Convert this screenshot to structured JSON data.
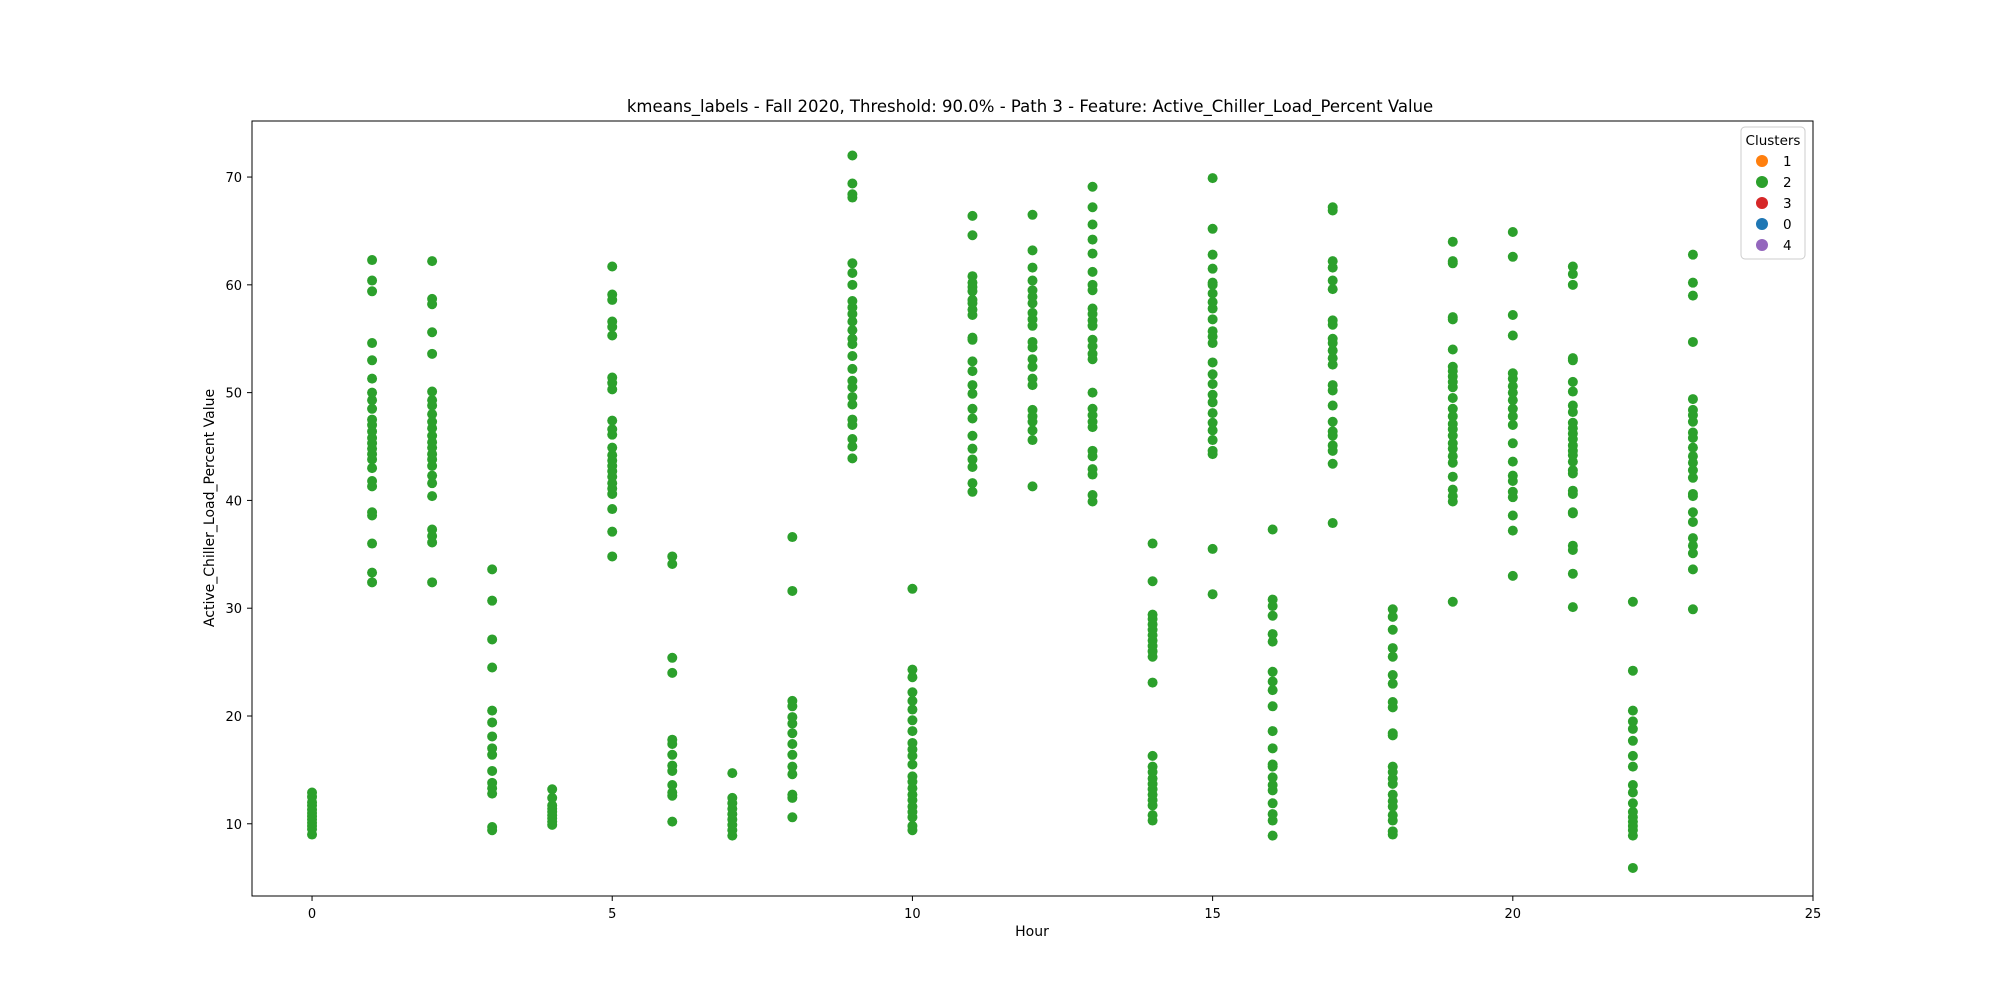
{
  "chart_data": {
    "type": "scatter",
    "title": "kmeans_labels - Fall 2020, Threshold: 90.0% - Path 3 - Feature: Active_Chiller_Load_Percent Value",
    "xlabel": "Hour",
    "ylabel": "Active_Chiller_Load_Percent Value",
    "xlim": [
      -1,
      25
    ],
    "ylim": [
      3.3,
      75.2
    ],
    "xticks": [
      0,
      5,
      10,
      15,
      20,
      25
    ],
    "yticks": [
      10,
      20,
      30,
      40,
      50,
      60,
      70
    ],
    "grid": false,
    "legend": {
      "title": "Clusters",
      "placement": "top-right",
      "entries": [
        {
          "label": "1",
          "color": "#ff7f0e"
        },
        {
          "label": "2",
          "color": "#2ca02c"
        },
        {
          "label": "3",
          "color": "#d62728"
        },
        {
          "label": "0",
          "color": "#1f77b4"
        },
        {
          "label": "4",
          "color": "#9467bd"
        }
      ]
    },
    "series": [
      {
        "name": "2",
        "color": "#2ca02c",
        "points_by_hour": [
          {
            "x": 0,
            "y": [
              9.0,
              9.5,
              9.8,
              10.1,
              10.4,
              10.7,
              11.0,
              11.3,
              11.7,
              12.0,
              12.5,
              12.9
            ]
          },
          {
            "x": 1,
            "y": [
              32.4,
              33.3,
              36.0,
              38.6,
              38.9,
              41.3,
              41.8,
              43.0,
              43.8,
              44.3,
              44.8,
              45.3,
              45.8,
              46.4,
              47.0,
              47.5,
              48.5,
              49.3,
              50.0,
              51.3,
              53.0,
              54.6,
              59.4,
              60.4,
              62.3
            ]
          },
          {
            "x": 2,
            "y": [
              32.4,
              36.1,
              36.7,
              37.3,
              40.4,
              41.6,
              42.3,
              43.2,
              43.8,
              44.3,
              44.9,
              45.4,
              46.0,
              46.7,
              47.3,
              48.0,
              48.8,
              49.3,
              50.1,
              53.6,
              55.6,
              58.2,
              58.7,
              62.2
            ]
          },
          {
            "x": 3,
            "y": [
              9.4,
              9.7,
              12.8,
              13.3,
              13.8,
              14.9,
              16.4,
              17.0,
              18.1,
              19.4,
              20.5,
              24.5,
              27.1,
              30.7,
              33.6
            ]
          },
          {
            "x": 4,
            "y": [
              9.9,
              10.2,
              10.5,
              10.8,
              11.1,
              11.4,
              11.7,
              12.4,
              13.2
            ]
          },
          {
            "x": 5,
            "y": [
              34.8,
              37.1,
              39.2,
              40.6,
              41.1,
              41.6,
              42.2,
              42.7,
              43.2,
              43.7,
              44.2,
              44.9,
              46.1,
              46.6,
              47.4,
              50.3,
              50.9,
              51.4,
              55.3,
              56.1,
              56.6,
              58.6,
              59.1,
              61.7
            ]
          },
          {
            "x": 6,
            "y": [
              10.2,
              12.6,
              12.9,
              13.6,
              14.9,
              15.4,
              16.4,
              17.4,
              17.8,
              24.0,
              25.4,
              34.1,
              34.8
            ]
          },
          {
            "x": 7,
            "y": [
              8.9,
              9.4,
              9.9,
              10.4,
              10.9,
              11.4,
              11.9,
              12.4,
              14.7
            ]
          },
          {
            "x": 8,
            "y": [
              10.6,
              12.4,
              12.7,
              14.6,
              15.3,
              16.4,
              17.4,
              18.4,
              19.3,
              19.9,
              20.9,
              21.4,
              31.6,
              36.6
            ]
          },
          {
            "x": 9,
            "y": [
              43.9,
              45.0,
              45.7,
              47.0,
              47.5,
              48.9,
              49.6,
              50.5,
              51.1,
              52.2,
              53.4,
              54.5,
              55.0,
              55.8,
              56.6,
              57.3,
              57.9,
              58.5,
              60.0,
              61.1,
              62.0,
              68.1,
              68.4,
              69.4,
              72.0
            ]
          },
          {
            "x": 10,
            "y": [
              9.4,
              9.8,
              10.6,
              11.1,
              11.6,
              12.2,
              12.7,
              13.3,
              13.9,
              14.4,
              15.5,
              16.3,
              16.9,
              17.5,
              18.6,
              19.6,
              20.6,
              21.4,
              22.2,
              23.6,
              24.3,
              31.8
            ]
          },
          {
            "x": 11,
            "y": [
              40.8,
              41.6,
              43.1,
              43.8,
              44.8,
              46.0,
              47.6,
              48.5,
              49.9,
              50.7,
              52.0,
              52.9,
              54.9,
              55.1,
              57.2,
              57.7,
              58.3,
              58.6,
              59.4,
              59.8,
              60.2,
              60.8,
              64.6,
              66.4
            ]
          },
          {
            "x": 12,
            "y": [
              41.3,
              45.6,
              46.5,
              47.3,
              47.8,
              48.4,
              50.7,
              51.3,
              52.4,
              53.1,
              54.2,
              54.7,
              56.2,
              56.8,
              57.4,
              58.3,
              58.9,
              59.5,
              60.4,
              61.6,
              63.2,
              66.5
            ]
          },
          {
            "x": 13,
            "y": [
              39.9,
              40.5,
              42.4,
              42.9,
              44.1,
              44.6,
              46.8,
              47.3,
              47.9,
              48.5,
              50.0,
              53.1,
              53.6,
              54.3,
              54.9,
              56.2,
              56.7,
              57.3,
              57.8,
              59.5,
              60.0,
              61.2,
              62.9,
              64.2,
              65.6,
              67.2,
              69.1
            ]
          },
          {
            "x": 14,
            "y": [
              10.3,
              10.8,
              11.7,
              12.2,
              12.7,
              13.2,
              13.7,
              14.2,
              14.8,
              15.3,
              16.3,
              23.1,
              25.5,
              26.0,
              26.5,
              27.0,
              27.5,
              28.0,
              28.5,
              29.0,
              29.4,
              32.5,
              36.0
            ]
          },
          {
            "x": 15,
            "y": [
              31.3,
              35.5,
              44.3,
              44.6,
              45.6,
              46.5,
              47.2,
              48.1,
              49.1,
              49.8,
              50.8,
              51.7,
              52.8,
              54.6,
              55.2,
              55.7,
              56.8,
              57.8,
              58.4,
              59.2,
              60.0,
              60.2,
              61.5,
              62.8,
              65.2,
              69.9
            ]
          },
          {
            "x": 16,
            "y": [
              8.9,
              10.3,
              10.9,
              11.9,
              13.1,
              13.6,
              14.3,
              15.3,
              15.5,
              17.0,
              18.6,
              20.9,
              22.4,
              23.2,
              24.1,
              26.9,
              27.6,
              29.3,
              30.2,
              30.8,
              37.3
            ]
          },
          {
            "x": 17,
            "y": [
              37.9,
              43.4,
              44.6,
              45.1,
              46.0,
              46.4,
              47.3,
              48.8,
              50.2,
              50.7,
              52.6,
              53.2,
              53.9,
              54.6,
              55.0,
              56.3,
              56.7,
              59.6,
              60.4,
              61.6,
              62.2,
              66.9,
              67.2
            ]
          },
          {
            "x": 18,
            "y": [
              9.0,
              9.3,
              10.3,
              10.8,
              11.6,
              12.1,
              12.7,
              13.7,
              14.2,
              14.8,
              15.3,
              18.2,
              18.4,
              20.8,
              21.3,
              23.0,
              23.8,
              25.5,
              26.3,
              28.0,
              29.2,
              29.9
            ]
          },
          {
            "x": 19,
            "y": [
              30.6,
              39.9,
              40.4,
              41.0,
              42.2,
              43.5,
              44.1,
              44.8,
              45.3,
              46.0,
              46.6,
              47.1,
              47.8,
              48.5,
              49.5,
              50.5,
              51.0,
              51.5,
              52.0,
              52.4,
              54.0,
              56.8,
              57.0,
              62.0,
              62.2,
              64.0
            ]
          },
          {
            "x": 20,
            "y": [
              33.0,
              37.2,
              38.6,
              40.3,
              40.8,
              41.8,
              42.3,
              43.6,
              45.3,
              47.0,
              47.8,
              48.5,
              49.3,
              50.0,
              50.6,
              51.3,
              51.8,
              55.3,
              57.2,
              62.6,
              64.9
            ]
          },
          {
            "x": 21,
            "y": [
              30.1,
              33.2,
              35.4,
              35.8,
              38.8,
              38.9,
              40.6,
              40.9,
              42.5,
              42.8,
              43.6,
              44.2,
              44.6,
              45.1,
              45.7,
              46.2,
              46.7,
              47.2,
              48.2,
              48.8,
              50.1,
              51.0,
              53.0,
              53.2,
              60.0,
              61.0,
              61.7
            ]
          },
          {
            "x": 22,
            "y": [
              5.9,
              8.9,
              9.4,
              9.8,
              10.2,
              10.6,
              11.1,
              11.9,
              12.9,
              13.6,
              15.3,
              16.3,
              17.7,
              18.8,
              19.5,
              20.5,
              24.2,
              30.6
            ]
          },
          {
            "x": 23,
            "y": [
              29.9,
              33.6,
              35.1,
              35.8,
              36.5,
              38.0,
              38.9,
              40.4,
              40.6,
              42.1,
              42.8,
              43.5,
              44.1,
              44.9,
              45.8,
              46.3,
              47.3,
              47.9,
              48.4,
              49.4,
              54.7,
              59.0,
              60.2,
              62.8
            ]
          }
        ]
      }
    ]
  }
}
